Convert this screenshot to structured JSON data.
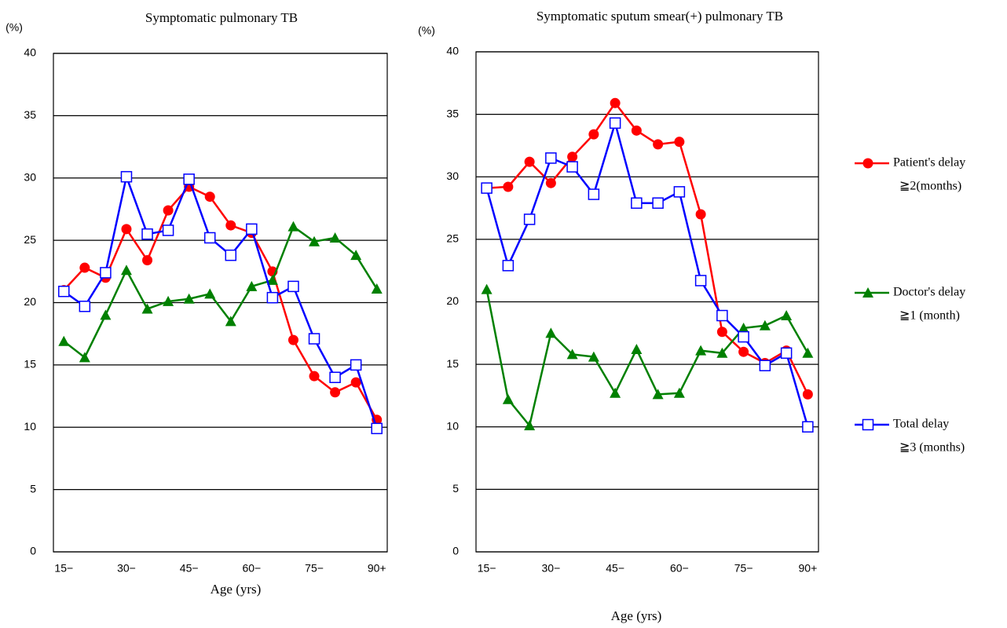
{
  "chart_data": [
    {
      "type": "line",
      "title": "Symptomatic pulmonary TB",
      "y_label": "(%)",
      "x_label": "Age (yrs)",
      "categories": [
        "15−",
        null,
        null,
        "30−",
        null,
        null,
        "45−",
        null,
        null,
        "60−",
        null,
        null,
        "75−",
        null,
        null,
        "90+"
      ],
      "ylim": [
        0,
        40
      ],
      "yticks": [
        0,
        5,
        10,
        15,
        20,
        25,
        30,
        35,
        40
      ],
      "grid": true,
      "series": [
        {
          "name": "Patient's delay",
          "color": "#ff0000",
          "marker": "circle",
          "values": [
            21.0,
            22.8,
            22.0,
            25.9,
            23.4,
            27.4,
            29.3,
            28.5,
            26.2,
            25.6,
            22.5,
            17.0,
            14.1,
            12.8,
            13.6,
            10.6
          ]
        },
        {
          "name": "Doctor's delay",
          "color": "#008000",
          "marker": "triangle",
          "values": [
            16.9,
            15.6,
            19.0,
            22.6,
            19.5,
            20.1,
            20.3,
            20.7,
            18.5,
            21.3,
            21.8,
            26.1,
            24.9,
            25.2,
            23.8,
            21.1
          ]
        },
        {
          "name": "Total delay",
          "color": "#0000ff",
          "marker": "square",
          "values": [
            20.9,
            19.7,
            22.4,
            30.1,
            25.5,
            25.8,
            29.9,
            25.2,
            23.8,
            25.9,
            20.4,
            21.3,
            17.1,
            14.0,
            15.0,
            9.9
          ]
        }
      ]
    },
    {
      "type": "line",
      "title": "Symptomatic sputum smear(+) pulmonary TB",
      "y_label": "(%)",
      "x_label": "Age (yrs)",
      "categories": [
        "15−",
        null,
        null,
        "30−",
        null,
        null,
        "45−",
        null,
        null,
        "60−",
        null,
        null,
        "75−",
        null,
        null,
        "90+"
      ],
      "ylim": [
        0,
        40
      ],
      "yticks": [
        0,
        5,
        10,
        15,
        20,
        25,
        30,
        35,
        40
      ],
      "grid": true,
      "legend": "right",
      "series": [
        {
          "name": "Patient's delay",
          "threshold": "≧2(months)",
          "color": "#ff0000",
          "marker": "circle",
          "values": [
            29.1,
            29.2,
            31.2,
            29.5,
            31.6,
            33.4,
            35.9,
            33.7,
            32.6,
            32.8,
            27.0,
            17.6,
            16.0,
            15.1,
            16.1,
            12.6
          ]
        },
        {
          "name": "Doctor's delay",
          "threshold": "≧1 (month)",
          "color": "#008000",
          "marker": "triangle",
          "values": [
            21.0,
            12.2,
            10.1,
            17.5,
            15.8,
            15.6,
            12.7,
            16.2,
            12.6,
            12.7,
            16.1,
            15.9,
            17.9,
            18.1,
            18.9,
            15.9
          ]
        },
        {
          "name": "Total delay",
          "threshold": "≧3 (months)",
          "color": "#0000ff",
          "marker": "square",
          "values": [
            29.1,
            22.9,
            26.6,
            31.5,
            30.8,
            28.6,
            34.3,
            27.9,
            27.9,
            28.8,
            21.7,
            18.9,
            17.2,
            14.9,
            15.9,
            10.0
          ]
        }
      ]
    }
  ]
}
